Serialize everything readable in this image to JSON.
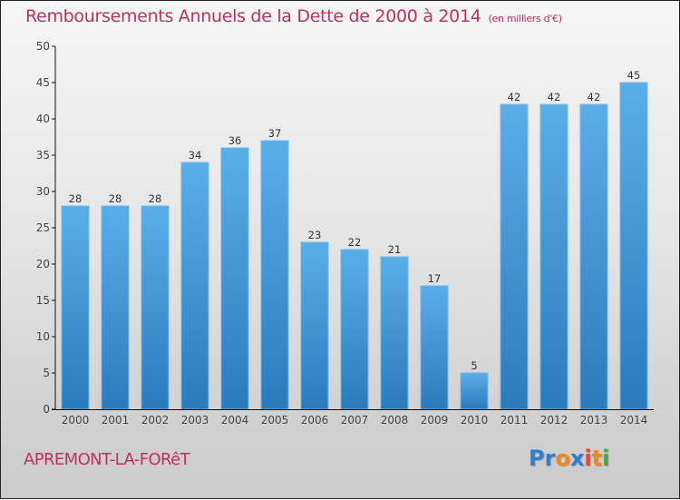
{
  "header": {
    "title": "Remboursements Annuels de la Dette de 2000 à 2014",
    "subtitle": "(en milliers d'€)"
  },
  "footer": {
    "city": "APREMONT-LA-FORêT",
    "logo_letters": [
      {
        "char": "P",
        "color": "#2f7fd0"
      },
      {
        "char": "r",
        "color": "#2f7fd0"
      },
      {
        "char": "o",
        "color": "#f08a1c"
      },
      {
        "char": "x",
        "color": "#2f7fd0"
      },
      {
        "char": "i",
        "color": "#e8452a"
      },
      {
        "char": "t",
        "color": "#f08a1c"
      },
      {
        "char": "i",
        "color": "#4aa83a"
      }
    ]
  },
  "chart_data": {
    "type": "bar",
    "title": "Remboursements Annuels de la Dette de 2000 à 2014",
    "subtitle": "(en milliers d'€)",
    "xlabel": "",
    "ylabel": "",
    "categories": [
      "2000",
      "2001",
      "2002",
      "2003",
      "2004",
      "2005",
      "2006",
      "2007",
      "2008",
      "2009",
      "2010",
      "2011",
      "2012",
      "2013",
      "2014"
    ],
    "values": [
      28,
      28,
      28,
      34,
      36,
      37,
      23,
      22,
      21,
      17,
      5,
      42,
      42,
      42,
      45
    ],
    "ylim": [
      0,
      50
    ],
    "yticks": [
      0,
      5,
      10,
      15,
      20,
      25,
      30,
      35,
      40,
      45,
      50
    ],
    "grid": false,
    "legend": "none",
    "bar_color_top": "#5aaee8",
    "bar_color_bottom": "#2b7bbb"
  }
}
